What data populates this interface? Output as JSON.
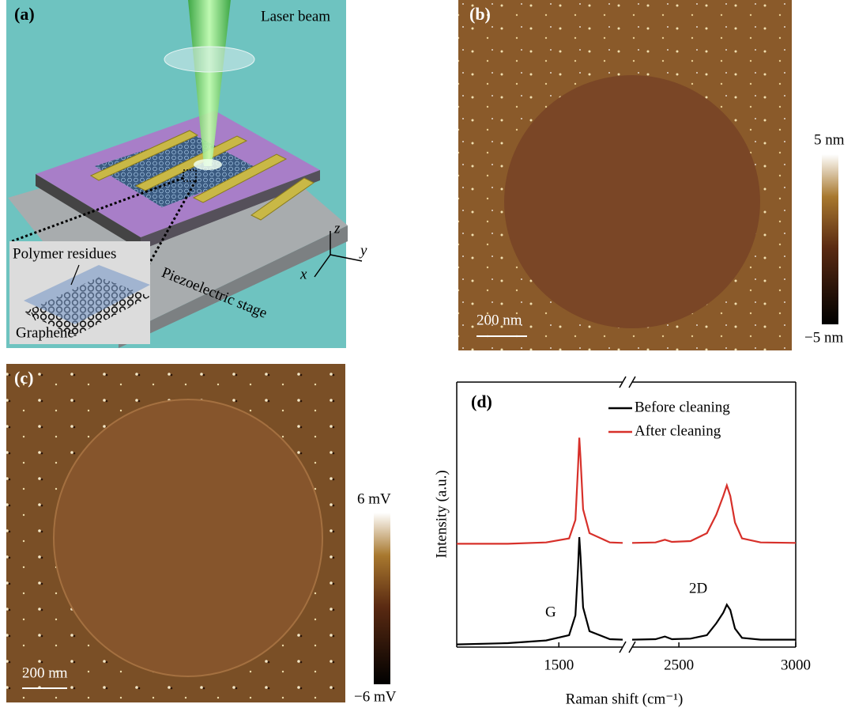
{
  "panel_a": {
    "label": "(a)",
    "laser": "Laser beam",
    "residues": "Polymer residues",
    "graphene": "Graphene",
    "stage": "Piezoelectric stage",
    "axes": [
      "x",
      "y",
      "z"
    ]
  },
  "panel_b": {
    "label": "(b)",
    "scale_max": "5 nm",
    "scale_min": "−5 nm",
    "scale_bar": "200 nm"
  },
  "panel_c": {
    "label": "(c)",
    "scale_max": "6 mV",
    "scale_min": "−6 mV",
    "scale_bar": "200 nm"
  },
  "chart_data": {
    "type": "line",
    "label": "(d)",
    "x_label": "Raman shift (cm⁻¹)",
    "y_label": "Intensity (a.u.)",
    "x_segments": [
      [
        1100,
        1750
      ],
      [
        2300,
        3000
      ]
    ],
    "xticks": [
      1500,
      2500,
      3000
    ],
    "ylim": [
      0,
      10
    ],
    "annotations": [
      "G",
      "2D"
    ],
    "x": [
      1100,
      1300,
      1450,
      1540,
      1565,
      1575,
      1580,
      1585,
      1595,
      1620,
      1700,
      1750,
      2000,
      2300,
      2400,
      2440,
      2470,
      2550,
      2620,
      2660,
      2690,
      2705,
      2720,
      2740,
      2770,
      2850,
      3000
    ],
    "series": [
      {
        "name": "Before cleaning",
        "color": "#000000",
        "values": [
          0.1,
          0.15,
          0.25,
          0.45,
          1.2,
          3.0,
          4.15,
          3.4,
          1.5,
          0.6,
          0.3,
          0.28,
          null,
          0.28,
          0.3,
          0.4,
          0.3,
          0.32,
          0.45,
          0.9,
          1.3,
          1.6,
          1.4,
          0.7,
          0.35,
          0.28,
          0.28
        ]
      },
      {
        "name": "After cleaning",
        "color": "#d7302a",
        "values": [
          3.9,
          3.9,
          3.95,
          4.1,
          4.8,
          6.8,
          7.9,
          7.1,
          5.2,
          4.3,
          3.95,
          3.93,
          null,
          3.93,
          3.95,
          4.05,
          3.97,
          4.0,
          4.3,
          5.0,
          5.7,
          6.1,
          5.7,
          4.7,
          4.1,
          3.95,
          3.93
        ]
      }
    ]
  }
}
